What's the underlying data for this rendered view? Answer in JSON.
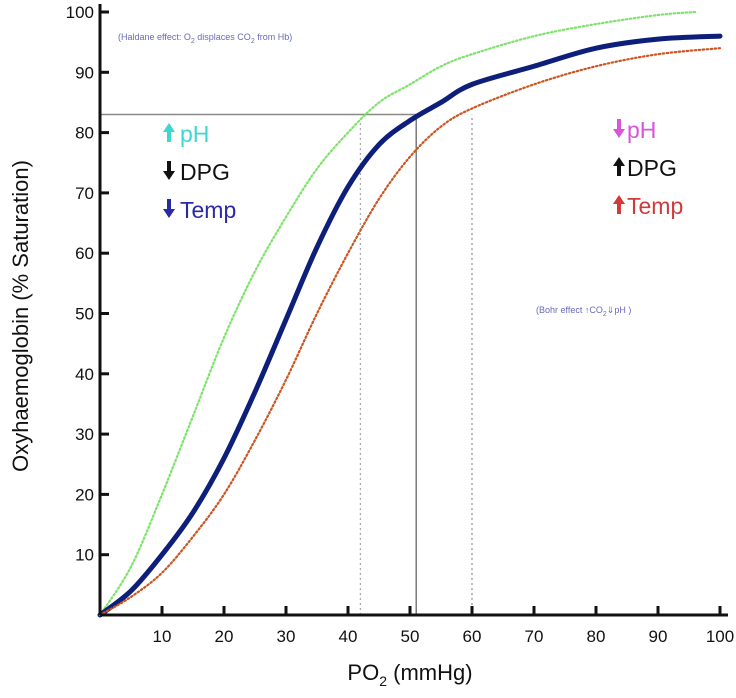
{
  "chart_data": {
    "type": "line",
    "title": "",
    "xlabel": "PO2 (mmHg)",
    "xlabel_main": "PO",
    "xlabel_sub": "2",
    "xlabel_rest": " (mmHg)",
    "ylabel": "Oxyhaemoglobin (% Saturation)",
    "xlim": [
      0,
      102
    ],
    "ylim": [
      0,
      101
    ],
    "x_ticks": [
      10,
      20,
      30,
      40,
      50,
      60,
      70,
      80,
      90,
      100
    ],
    "y_ticks": [
      10,
      20,
      30,
      40,
      50,
      60,
      70,
      80,
      90,
      100
    ],
    "grid": false,
    "legend": "none",
    "series": [
      {
        "color": "#7ee36a",
        "style": "dotted",
        "x": [
          0,
          5,
          10,
          15,
          20,
          25,
          30,
          35,
          40,
          45,
          50,
          55,
          60,
          70,
          80,
          90,
          96
        ],
        "y": [
          0,
          8,
          20,
          33,
          46,
          57,
          66,
          74,
          80,
          85,
          88,
          91,
          93,
          96,
          98,
          99.5,
          100
        ]
      },
      {
        "color": "#0d1f7a",
        "style": "solid",
        "x": [
          0,
          5,
          10,
          15,
          20,
          25,
          30,
          35,
          40,
          45,
          50,
          55,
          60,
          70,
          80,
          90,
          100
        ],
        "y": [
          0,
          4,
          10,
          17,
          26,
          37,
          49,
          61,
          71,
          78,
          82,
          85,
          88,
          91,
          94,
          95.5,
          96
        ]
      },
      {
        "color": "#cc5522",
        "style": "dotted",
        "x": [
          0,
          5,
          10,
          15,
          20,
          25,
          30,
          35,
          40,
          45,
          50,
          55,
          60,
          70,
          80,
          90,
          100
        ],
        "y": [
          0,
          3,
          7,
          13,
          20,
          29,
          39,
          50,
          60,
          69,
          76,
          81,
          84,
          88,
          91,
          93,
          94
        ]
      }
    ],
    "reference_lines": {
      "horizontal": {
        "y": 83,
        "x_from": 0,
        "x_to": 51,
        "color": "#888888",
        "style": "solid"
      },
      "vertical": [
        {
          "x": 42,
          "y_to": 82,
          "color": "#aaaaaa",
          "style": "dotted"
        },
        {
          "x": 51,
          "y_to": 83,
          "color": "#666666",
          "style": "solid"
        },
        {
          "x": 60,
          "y_to": 83,
          "color": "#999999",
          "style": "dotted"
        }
      ]
    },
    "annotations": {
      "haldane": {
        "pre": "(Haldane effect: O",
        "sub1": "2",
        "mid": " displaces CO",
        "sub2": "2",
        "post": " from Hb)",
        "color": "#6a6ab8"
      },
      "left": [
        {
          "arrow": "up",
          "text": "pH",
          "color": "#3ed6d0",
          "arrow_color": "#3ed6d0"
        },
        {
          "arrow": "down",
          "text": "DPG",
          "color": "#111111",
          "arrow_color": "#111111"
        },
        {
          "arrow": "down",
          "text": "Temp",
          "color": "#2a2aa8",
          "arrow_color": "#2a2aa8"
        }
      ],
      "right": [
        {
          "arrow": "down",
          "text": "pH",
          "color": "#d955d9",
          "arrow_color": "#d955d9"
        },
        {
          "arrow": "up",
          "text": "DPG",
          "color": "#111111",
          "arrow_color": "#111111"
        },
        {
          "arrow": "up",
          "text": "Temp",
          "color": "#d03a3a",
          "arrow_color": "#d03a3a"
        }
      ],
      "bohr": {
        "pre": "(Bohr effect ",
        "co2": "CO",
        "co2_sub": "2",
        "ph": "pH )",
        "color": "#6a6ab8"
      }
    }
  }
}
